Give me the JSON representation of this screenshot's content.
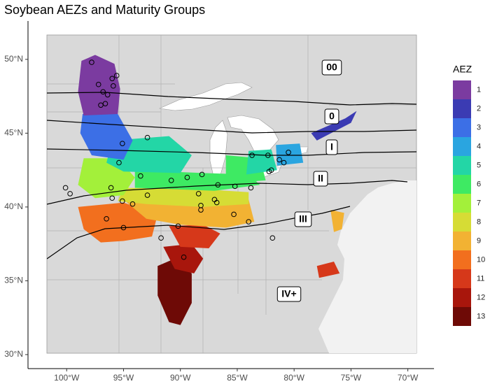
{
  "chart_data": {
    "type": "map",
    "title": "Soybean AEZs and Maturity Groups",
    "xlim": [
      -103.4,
      -67.7
    ],
    "ylim": [
      29.05,
      52.6
    ],
    "xticks": [
      {
        "value": -100,
        "label": "100°W"
      },
      {
        "value": -95,
        "label": "95°W"
      },
      {
        "value": -90,
        "label": "90°W"
      },
      {
        "value": -85,
        "label": "85°W"
      },
      {
        "value": -80,
        "label": "80°W"
      },
      {
        "value": -75,
        "label": "75°W"
      },
      {
        "value": -70,
        "label": "70°W"
      }
    ],
    "yticks": [
      {
        "value": 30,
        "label": "30°N"
      },
      {
        "value": 35,
        "label": "35°N"
      },
      {
        "value": 40,
        "label": "40°N"
      },
      {
        "value": 45,
        "label": "45°N"
      },
      {
        "value": 50,
        "label": "50°N"
      }
    ],
    "legend": {
      "title": "AEZ",
      "categories": [
        "1",
        "2",
        "3",
        "4",
        "5",
        "6",
        "7",
        "8",
        "9",
        "10",
        "11",
        "12",
        "13"
      ],
      "colors": [
        "#7b3ba0",
        "#3b3bb3",
        "#3c6fe6",
        "#2aa5e0",
        "#23d6a6",
        "#3eea63",
        "#a3f03a",
        "#d6dc35",
        "#f2b233",
        "#f26f1e",
        "#d6381a",
        "#a8160c",
        "#6e0a06"
      ]
    },
    "maturity_groups": [
      "00",
      "0",
      "I",
      "II",
      "III",
      "IV+"
    ],
    "sites": {
      "x": [
        -97.8,
        -97.2,
        -96.8,
        -96.4,
        -96.6,
        -97.0,
        -95.9,
        -95.6,
        -96.0,
        -92.9,
        -95.1,
        -95.4,
        -93.5,
        -100.1,
        -99.7,
        -96.1,
        -96.0,
        -95.1,
        -94.2,
        -96.5,
        -95.0,
        -92.9,
        -90.8,
        -89.4,
        -88.1,
        -88.4,
        -88.2,
        -88.2,
        -90.2,
        -86.7,
        -87.0,
        -86.8,
        -85.2,
        -83.8,
        -82.2,
        -82.0,
        -83.7,
        -82.3,
        -81.3,
        -80.9,
        -80.5,
        -84.0,
        -85.3,
        -81.9,
        -91.7,
        -89.7
      ],
      "y": [
        49.8,
        48.3,
        47.8,
        47.6,
        47.0,
        46.9,
        48.2,
        48.9,
        48.7,
        44.7,
        44.3,
        43.0,
        42.1,
        41.3,
        40.9,
        41.3,
        40.6,
        40.4,
        40.2,
        39.2,
        38.6,
        40.8,
        41.8,
        42.0,
        42.2,
        40.9,
        40.1,
        39.8,
        38.7,
        41.5,
        40.5,
        40.3,
        41.4,
        41.3,
        42.4,
        42.5,
        43.5,
        43.5,
        43.2,
        43.0,
        43.7,
        39.0,
        39.5,
        37.9,
        37.9,
        36.6
      ]
    }
  }
}
